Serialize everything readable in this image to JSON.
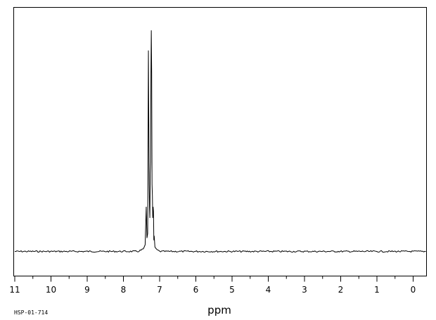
{
  "chart_data": {
    "type": "line",
    "title": "",
    "xlabel": "ppm",
    "ylabel": "",
    "xlim": [
      11.0,
      -0.35
    ],
    "ylim": [
      -0.09,
      1.0
    ],
    "x_reversed": true,
    "grid": false,
    "legend": "none",
    "major_ticks": [
      11,
      10,
      9,
      8,
      7,
      6,
      5,
      4,
      3,
      2,
      1,
      0
    ],
    "tick_labels": [
      "11",
      "10",
      "9",
      "8",
      "7",
      "6",
      "5",
      "4",
      "3",
      "2",
      "1",
      "0"
    ],
    "minor_tick_step": 0.5,
    "spectrum_code": "HSP-01-714",
    "series": [
      {
        "values_description_free": true,
        "x": [
          11.0,
          7.6,
          7.45,
          7.4,
          7.37,
          7.35,
          7.33,
          7.31,
          7.29,
          7.28,
          7.27,
          7.26,
          7.25,
          7.24,
          7.23,
          7.22,
          7.21,
          7.2,
          7.19,
          7.18,
          7.17,
          7.16,
          7.15,
          7.13,
          7.1,
          7.0,
          -0.35
        ],
        "y": [
          0.0,
          0.0,
          0.01,
          0.03,
          0.2,
          0.06,
          0.08,
          0.9,
          0.3,
          0.2,
          0.15,
          0.35,
          0.4,
          0.8,
          0.99,
          0.8,
          0.3,
          0.25,
          0.15,
          0.2,
          0.18,
          0.05,
          0.07,
          0.02,
          0.01,
          0.0,
          0.0
        ]
      }
    ]
  }
}
